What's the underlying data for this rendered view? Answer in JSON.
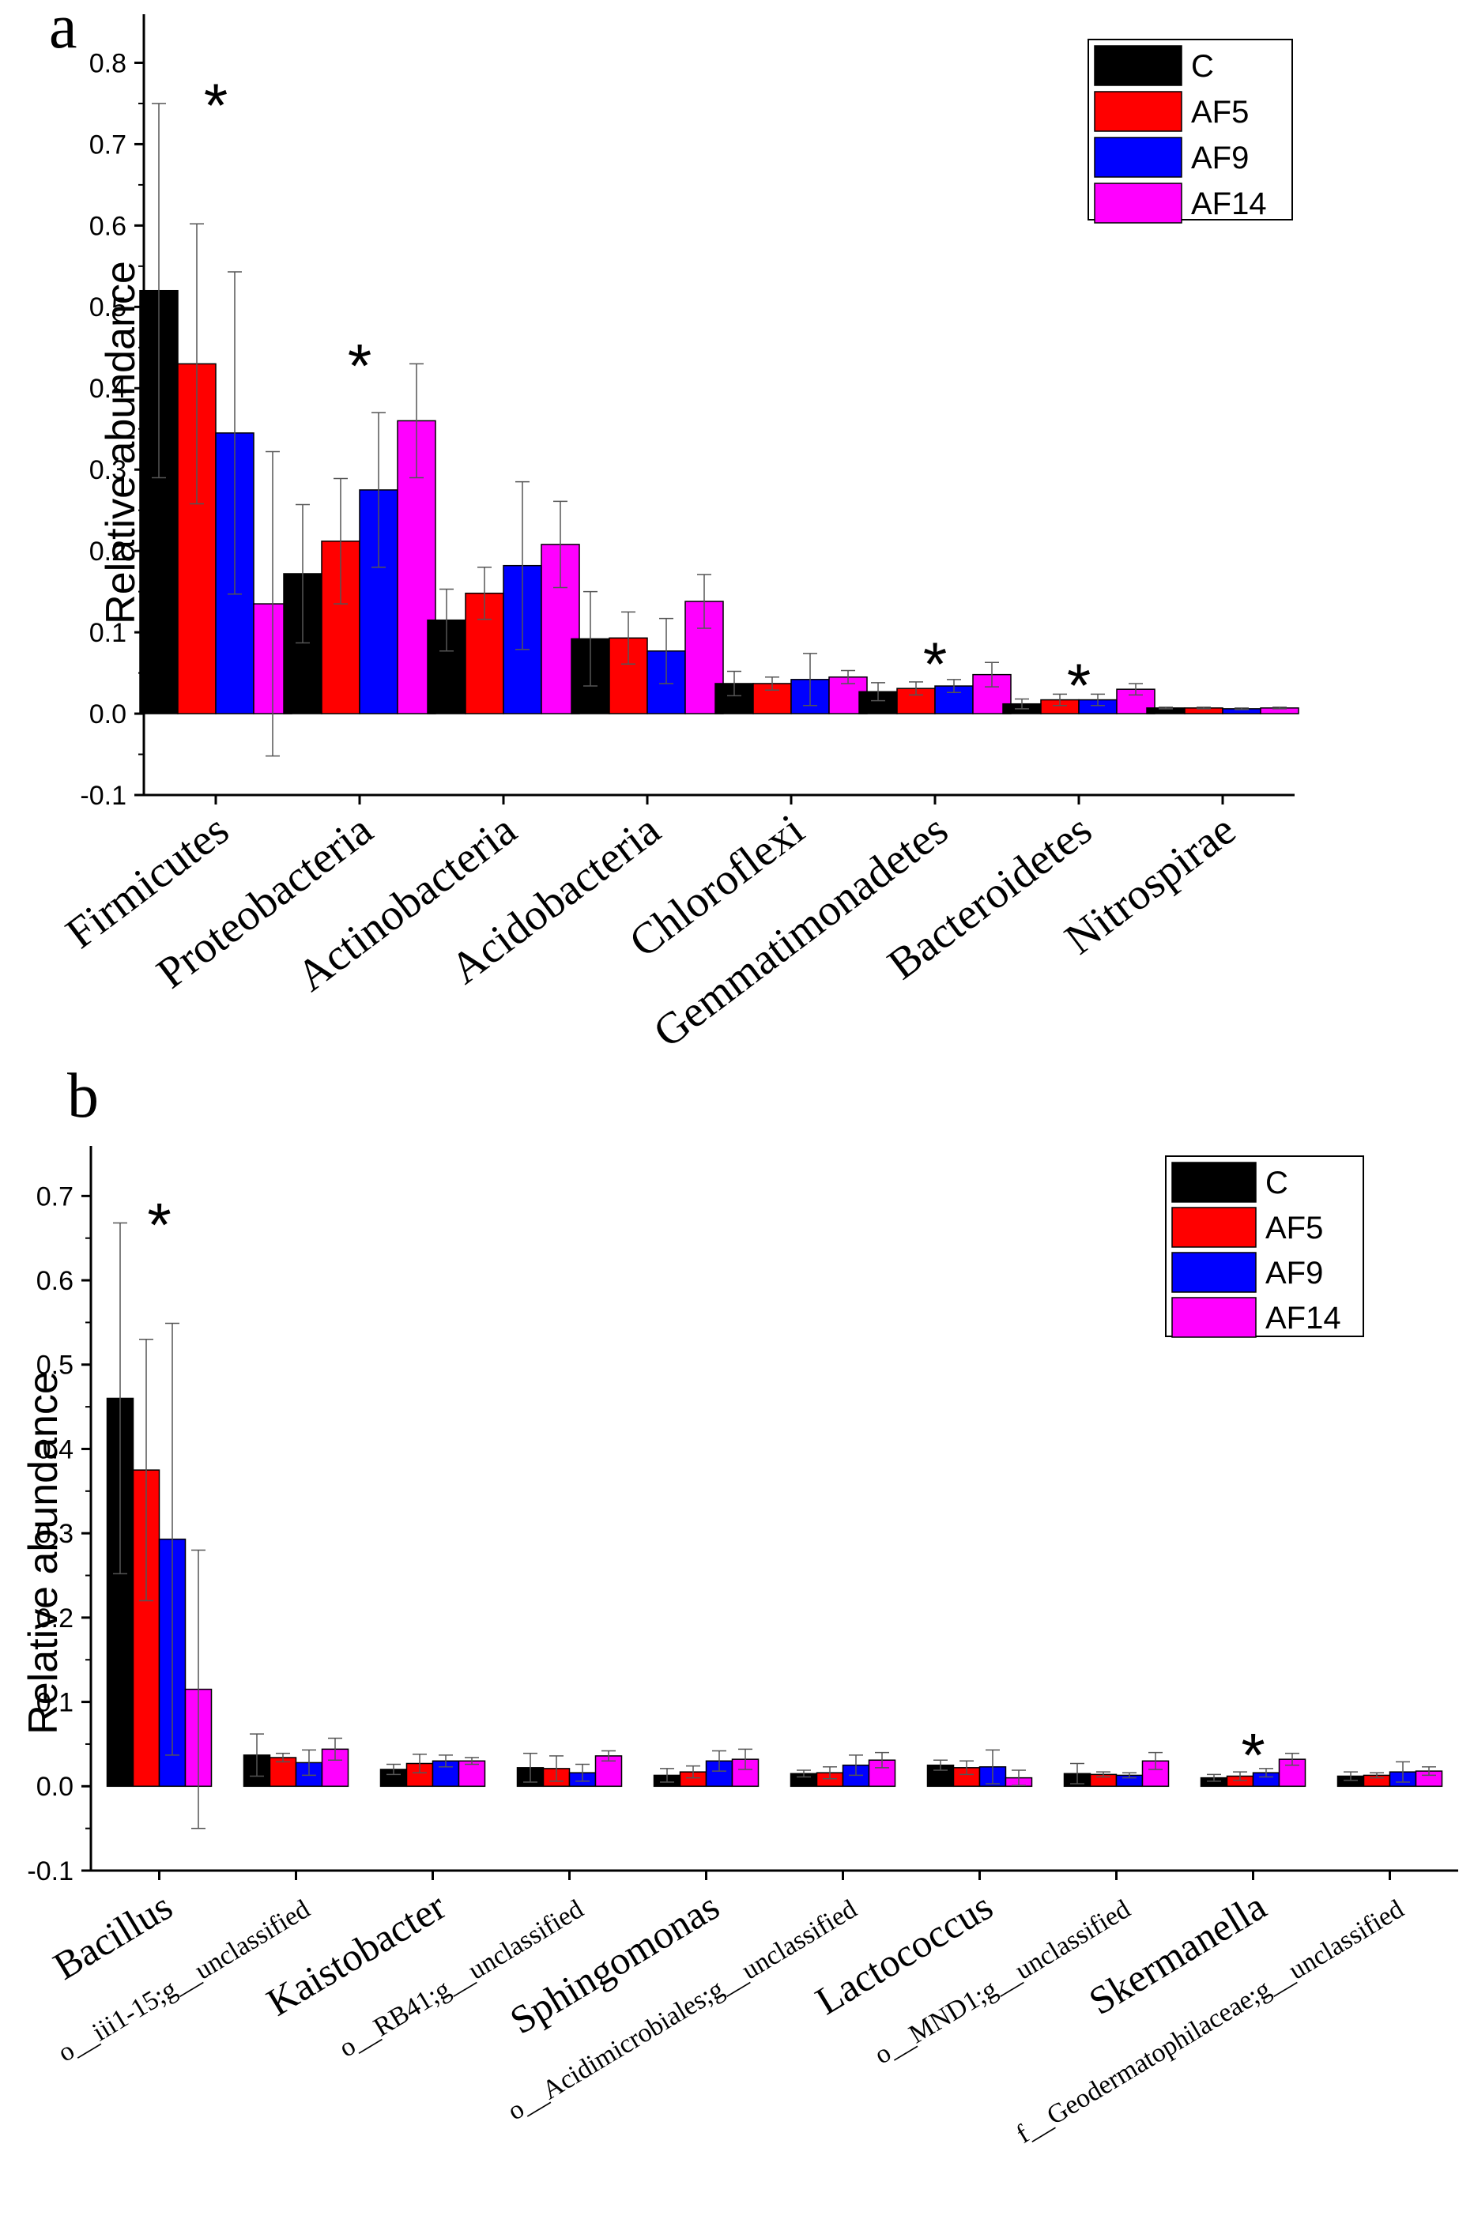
{
  "figure": {
    "panels": [
      "a",
      "b"
    ]
  },
  "chart_data": [
    {
      "type": "bar",
      "panel_label": "a",
      "title": "",
      "xlabel": "",
      "ylabel": "Relative abundance",
      "ylim": [
        -0.1,
        0.85
      ],
      "yticks": [
        -0.1,
        0.0,
        0.1,
        0.2,
        0.3,
        0.4,
        0.5,
        0.6,
        0.7,
        0.8
      ],
      "ytick_labels": [
        "-0.1",
        "0.0",
        "0.1",
        "0.2",
        "0.3",
        "0.4",
        "0.5",
        "0.6",
        "0.7",
        "0.8"
      ],
      "categories": [
        "Firmicutes",
        "Proteobacteria",
        "Actinobacteria",
        "Acidobacteria",
        "Chloroflexi",
        "Gemmatimonadetes",
        "Bacteroidetes",
        "Nitrospirae"
      ],
      "significant": [
        true,
        true,
        false,
        false,
        false,
        true,
        true,
        false
      ],
      "significance_marker": "*",
      "legend": {
        "placement": "top-right",
        "entries": [
          "C",
          "AF5",
          "AF9",
          "AF14"
        ]
      },
      "series": [
        {
          "name": "C",
          "color": "#000000",
          "values": [
            0.52,
            0.172,
            0.115,
            0.092,
            0.037,
            0.027,
            0.012,
            0.007
          ],
          "errors": [
            0.23,
            0.085,
            0.038,
            0.058,
            0.015,
            0.011,
            0.006,
            0.001
          ]
        },
        {
          "name": "AF5",
          "color": "#ff0000",
          "values": [
            0.43,
            0.212,
            0.148,
            0.093,
            0.037,
            0.031,
            0.017,
            0.007
          ],
          "errors": [
            0.172,
            0.077,
            0.032,
            0.032,
            0.008,
            0.008,
            0.007,
            0.001
          ]
        },
        {
          "name": "AF9",
          "color": "#0000ff",
          "values": [
            0.345,
            0.275,
            0.182,
            0.077,
            0.042,
            0.034,
            0.017,
            0.006
          ],
          "errors": [
            0.198,
            0.095,
            0.103,
            0.04,
            0.032,
            0.008,
            0.007,
            0.001
          ]
        },
        {
          "name": "AF14",
          "color": "#ff00ff",
          "values": [
            0.135,
            0.36,
            0.208,
            0.138,
            0.045,
            0.048,
            0.03,
            0.007
          ],
          "errors": [
            0.187,
            0.07,
            0.053,
            0.033,
            0.008,
            0.015,
            0.007,
            0.001
          ]
        }
      ]
    },
    {
      "type": "bar",
      "panel_label": "b",
      "title": "",
      "xlabel": "",
      "ylabel": "Relative abundance",
      "ylim": [
        -0.1,
        0.75
      ],
      "yticks": [
        -0.1,
        0.0,
        0.1,
        0.2,
        0.3,
        0.4,
        0.5,
        0.6,
        0.7
      ],
      "ytick_labels": [
        "-0.1",
        "0.0",
        "0.1",
        "0.2",
        "0.3",
        "0.4",
        "0.5",
        "0.6",
        "0.7"
      ],
      "categories": [
        "Bacillus",
        "o__iii1-15;g__unclassified",
        "Kaistobacter",
        "o__RB41;g__unclassified",
        "Sphingomonas",
        "o__Acidimicrobiales;g__unclassified",
        "Lactococcus",
        "o__MND1;g__unclassified",
        "Skermanella",
        "f__Geodermatophilaceae;g__unclassified"
      ],
      "category_style": [
        "large",
        "small",
        "large",
        "small",
        "large",
        "small",
        "large",
        "small",
        "large",
        "small"
      ],
      "significant": [
        true,
        false,
        false,
        false,
        false,
        false,
        false,
        false,
        true,
        false
      ],
      "significance_marker": "*",
      "legend": {
        "placement": "top-right",
        "entries": [
          "C",
          "AF5",
          "AF9",
          "AF14"
        ]
      },
      "series": [
        {
          "name": "C",
          "color": "#000000",
          "values": [
            0.46,
            0.037,
            0.02,
            0.022,
            0.013,
            0.015,
            0.025,
            0.015,
            0.01,
            0.012
          ],
          "errors": [
            0.208,
            0.025,
            0.006,
            0.017,
            0.008,
            0.004,
            0.006,
            0.012,
            0.004,
            0.005
          ]
        },
        {
          "name": "AF5",
          "color": "#ff0000",
          "values": [
            0.375,
            0.034,
            0.027,
            0.021,
            0.017,
            0.016,
            0.022,
            0.014,
            0.012,
            0.013
          ],
          "errors": [
            0.155,
            0.005,
            0.011,
            0.015,
            0.007,
            0.007,
            0.008,
            0.003,
            0.005,
            0.003
          ]
        },
        {
          "name": "AF9",
          "color": "#0000ff",
          "values": [
            0.293,
            0.028,
            0.03,
            0.016,
            0.03,
            0.025,
            0.023,
            0.013,
            0.016,
            0.017
          ],
          "errors": [
            0.256,
            0.015,
            0.007,
            0.01,
            0.012,
            0.012,
            0.02,
            0.003,
            0.005,
            0.012
          ]
        },
        {
          "name": "AF14",
          "color": "#ff00ff",
          "values": [
            0.115,
            0.044,
            0.03,
            0.036,
            0.032,
            0.031,
            0.01,
            0.03,
            0.032,
            0.018
          ],
          "errors": [
            0.165,
            0.013,
            0.004,
            0.006,
            0.012,
            0.009,
            0.009,
            0.01,
            0.007,
            0.005
          ]
        }
      ]
    }
  ]
}
